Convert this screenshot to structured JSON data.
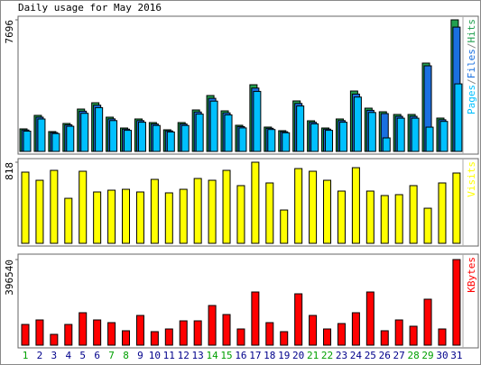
{
  "chart_data": [
    {
      "type": "bar",
      "title": "Daily usage for May 2016",
      "legend_separator": "/",
      "ylim": [
        0,
        7696
      ],
      "yticks": [
        7696
      ],
      "series": [
        {
          "name": "Pages",
          "color": "#00c0ff",
          "values": [
            1186,
            1897,
            1044,
            1471,
            2229,
            2561,
            1803,
            1233,
            1708,
            1518,
            1139,
            1518,
            2183,
            2942,
            2135,
            1376,
            3510,
            1281,
            1091,
            2657,
            1613,
            1233,
            1708,
            3179,
            2277,
            790,
            1945,
            1945,
            1420,
            1755,
            3950
          ]
        },
        {
          "name": "Files",
          "color": "#1a70e0",
          "values": [
            1252,
            2003,
            1102,
            1552,
            2353,
            2704,
            1903,
            1302,
            1803,
            1603,
            1202,
            1603,
            2304,
            3106,
            2253,
            1453,
            3705,
            1352,
            1151,
            2804,
            1702,
            1302,
            1803,
            3355,
            2404,
            2213,
            2053,
            2053,
            5007,
            1853,
            7270
          ]
        },
        {
          "name": "Hits",
          "color": "#22a050",
          "values": [
            1318,
            2108,
            1160,
            1634,
            2477,
            2846,
            2003,
            1370,
            1898,
            1687,
            1265,
            1687,
            2425,
            3269,
            2372,
            1529,
            3900,
            1423,
            1212,
            2952,
            1792,
            1370,
            1898,
            3532,
            2530,
            2319,
            2161,
            2161,
            5166,
            1950,
            7696
          ]
        }
      ]
    },
    {
      "type": "bar",
      "ylim": [
        0,
        818
      ],
      "yticks": [
        818
      ],
      "series": [
        {
          "name": "Visits",
          "color": "#ffff00",
          "values": [
            718,
            636,
            736,
            454,
            727,
            518,
            536,
            545,
            518,
            645,
            509,
            545,
            654,
            636,
            736,
            582,
            818,
            609,
            336,
            754,
            727,
            636,
            527,
            763,
            527,
            482,
            491,
            582,
            354,
            609,
            709
          ]
        }
      ]
    },
    {
      "type": "bar",
      "ylim": [
        0,
        396540
      ],
      "yticks": [
        396540
      ],
      "categories": [
        "1",
        "2",
        "3",
        "4",
        "5",
        "6",
        "7",
        "8",
        "9",
        "10",
        "11",
        "12",
        "13",
        "14",
        "15",
        "16",
        "17",
        "18",
        "19",
        "20",
        "21",
        "22",
        "23",
        "24",
        "25",
        "26",
        "27",
        "28",
        "29",
        "30",
        "31"
      ],
      "category_colors": [
        "#00a000",
        "#00008b",
        "#00008b",
        "#00008b",
        "#00008b",
        "#00008b",
        "#00a000",
        "#00a000",
        "#00008b",
        "#00008b",
        "#00008b",
        "#00008b",
        "#00008b",
        "#00a000",
        "#00a000",
        "#00008b",
        "#00008b",
        "#00008b",
        "#00008b",
        "#00008b",
        "#00a000",
        "#00a000",
        "#00008b",
        "#00008b",
        "#00008b",
        "#00008b",
        "#00008b",
        "#00a000",
        "#00a000",
        "#00008b",
        "#00008b"
      ],
      "series": [
        {
          "name": "KBytes",
          "color": "#ff0000",
          "values": [
            96000,
            116900,
            50100,
            96000,
            150300,
            116900,
            104400,
            66800,
            137700,
            62600,
            75100,
            112700,
            112700,
            183700,
            141900,
            75100,
            246300,
            104400,
            62600,
            237900,
            137700,
            75100,
            100200,
            150300,
            246300,
            66800,
            116900,
            87700,
            212900,
            75100,
            396540
          ]
        }
      ]
    }
  ]
}
